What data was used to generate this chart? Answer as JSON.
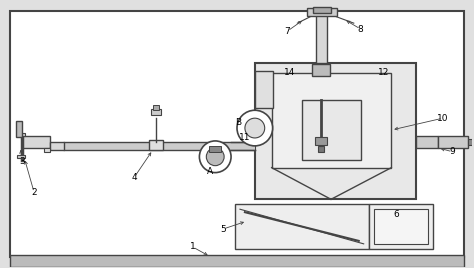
{
  "fig_bg": "#e0e0e0",
  "white_bg": "#ffffff",
  "lc": "#444444",
  "lc2": "#888888",
  "gray_fill": "#cccccc",
  "light_fill": "#eeeeee",
  "base_fill": "#bbbbbb"
}
